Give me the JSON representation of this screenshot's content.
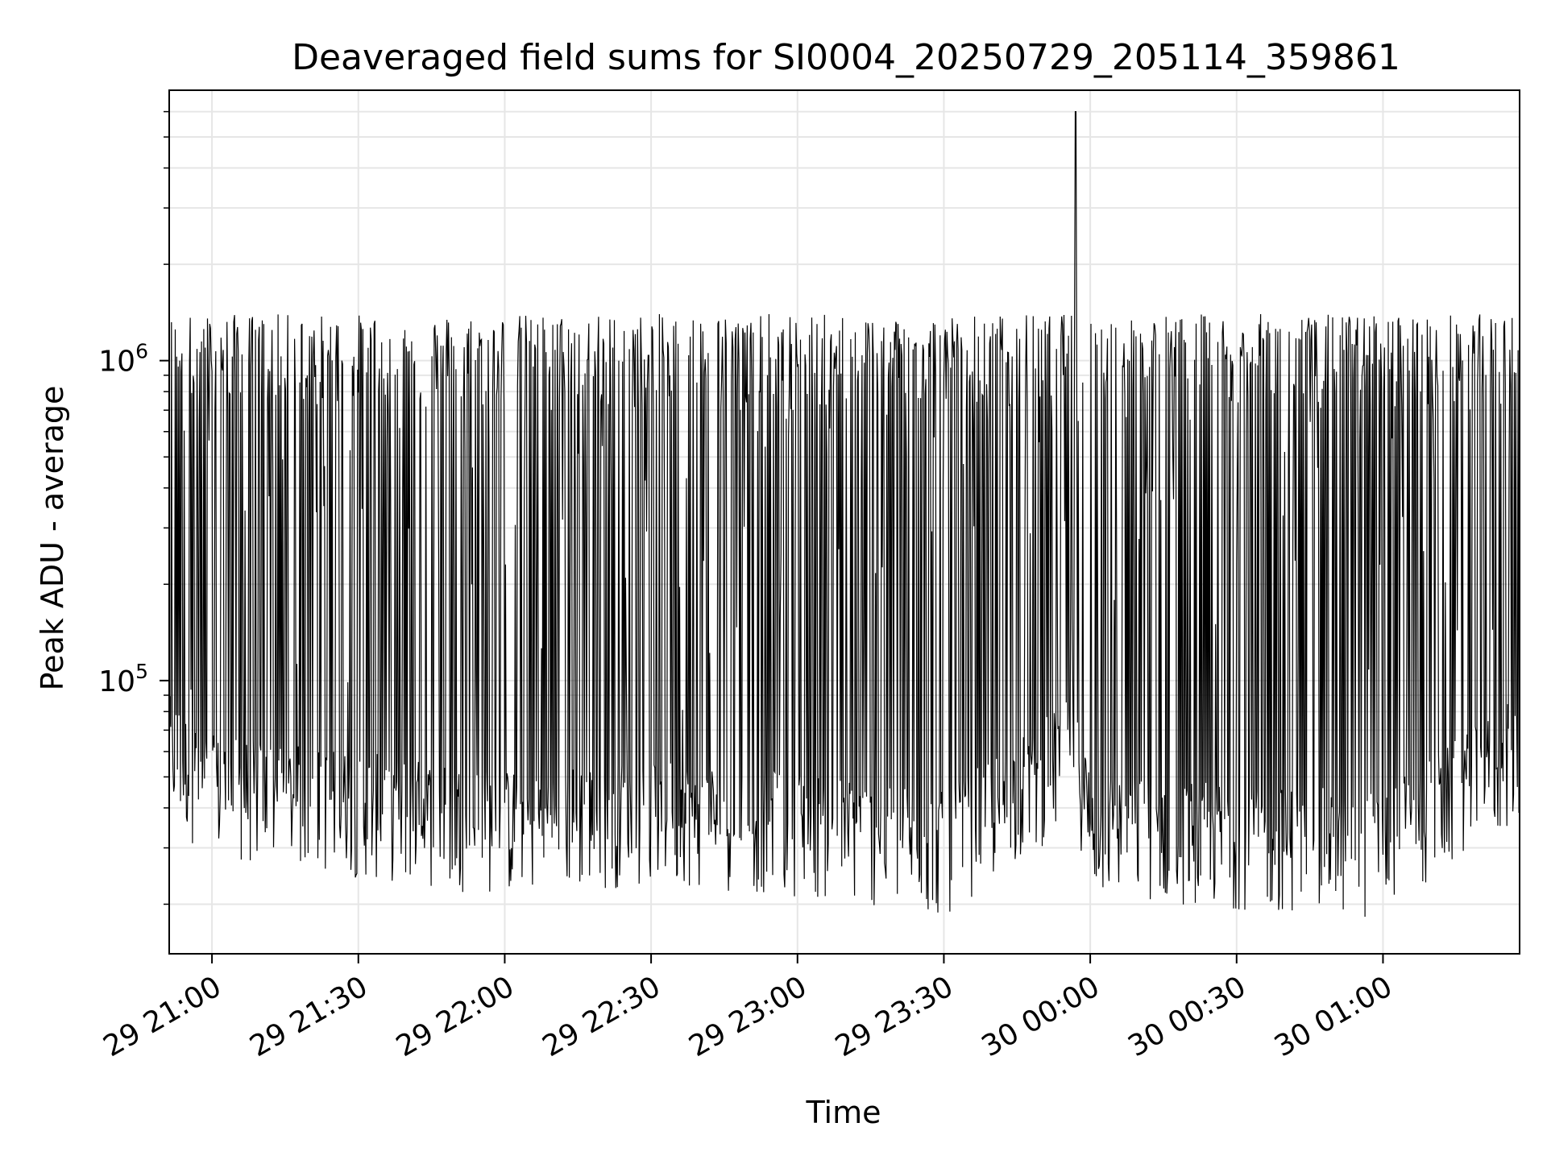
{
  "chart_data": {
    "type": "line",
    "title": "Deaveraged field sums for SI0004_20250729_205114_359861",
    "xlabel": "Time",
    "ylabel": "Peak ADU - average",
    "yscale": "log",
    "grid": true,
    "legend": "none",
    "line_color": "#000000",
    "grid_color": "#e6e6e6",
    "xlim": [
      "2025-07-29 20:51:14",
      "2025-07-30 01:28:00"
    ],
    "ylim": [
      14000,
      7000000
    ],
    "x_ticks": [
      {
        "time": "2025-07-29 21:00",
        "label": "29 21:00"
      },
      {
        "time": "2025-07-29 21:30",
        "label": "29 21:30"
      },
      {
        "time": "2025-07-29 22:00",
        "label": "29 22:00"
      },
      {
        "time": "2025-07-29 22:30",
        "label": "29 22:30"
      },
      {
        "time": "2025-07-29 23:00",
        "label": "29 23:00"
      },
      {
        "time": "2025-07-29 23:30",
        "label": "29 23:30"
      },
      {
        "time": "2025-07-30 00:00",
        "label": "30 00:00"
      },
      {
        "time": "2025-07-30 00:30",
        "label": "30 00:30"
      },
      {
        "time": "2025-07-30 01:00",
        "label": "30 01:00"
      }
    ],
    "y_ticks": [
      {
        "value": 100000,
        "base": "10",
        "exp": "5"
      },
      {
        "value": 1000000,
        "base": "10",
        "exp": "6"
      }
    ],
    "series": [
      {
        "x": [
          "2025-07-29 20:51:14",
          "2025-07-29 21:00",
          "2025-07-29 21:30",
          "2025-07-29 22:00",
          "2025-07-29 22:30",
          "2025-07-29 23:00",
          "2025-07-29 23:30",
          "2025-07-29 23:57",
          "2025-07-30 00:00",
          "2025-07-30 00:30",
          "2025-07-30 01:00",
          "2025-07-30 01:28"
        ],
        "y": [
          1200000,
          45000,
          40000,
          35000,
          38000,
          35000,
          30000,
          6000000,
          35000,
          32000,
          30000,
          1100000
        ]
      }
    ]
  }
}
